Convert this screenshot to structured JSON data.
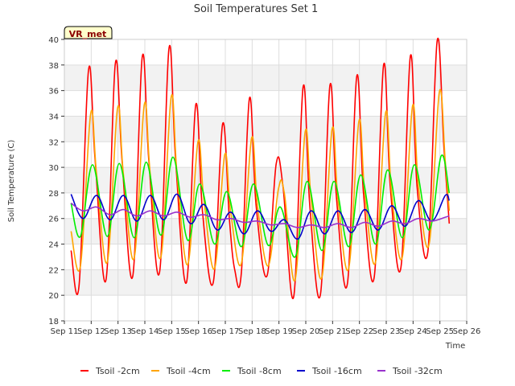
{
  "chart_data": {
    "type": "line",
    "title": "Soil Temperatures Set 1",
    "xlabel": "Time",
    "ylabel": "Soil Temperature (C)",
    "site_label": "VR_met",
    "ylim": [
      18,
      40
    ],
    "y_ticks": [
      18,
      20,
      22,
      24,
      26,
      28,
      30,
      32,
      34,
      36,
      38,
      40
    ],
    "xlim": [
      11,
      26
    ],
    "x_ticks": [
      11,
      12,
      13,
      14,
      15,
      16,
      17,
      18,
      19,
      20,
      21,
      22,
      23,
      24,
      25,
      26
    ],
    "x_tick_labels": [
      "Sep 11",
      "Sep 12",
      "Sep 13",
      "Sep 14",
      "Sep 15",
      "Sep 16",
      "Sep 17",
      "Sep 18",
      "Sep 19",
      "Sep 20",
      "Sep 21",
      "Sep 22",
      "Sep 23",
      "Sep 24",
      "Sep 25",
      "Sep 26"
    ],
    "background": "alternating-gray-bands",
    "legend_position": "bottom",
    "series": [
      {
        "name": "Tsoil -2cm",
        "color": "#ff0000",
        "x": [
          11.25,
          11.55,
          11.9,
          12.15,
          12.55,
          12.9,
          13.15,
          13.55,
          13.9,
          14.15,
          14.55,
          14.9,
          15.15,
          15.55,
          15.9,
          16.15,
          16.55,
          16.9,
          17.15,
          17.35,
          17.6,
          17.9,
          18.15,
          18.55,
          18.9,
          19.15,
          19.55,
          19.9,
          20.15,
          20.55,
          20.9,
          21.15,
          21.55,
          21.9,
          22.15,
          22.55,
          22.9,
          23.15,
          23.55,
          23.9,
          24.15,
          24.55,
          24.9,
          25.15,
          25.35
        ],
        "y": [
          23.5,
          20.8,
          37.6,
          30.5,
          21.2,
          38.1,
          30.5,
          21.5,
          38.6,
          30.5,
          21.8,
          39.3,
          30.5,
          21.0,
          34.9,
          26.5,
          21.0,
          33.4,
          26.0,
          22.0,
          21.8,
          35.4,
          27.0,
          21.5,
          30.3,
          28.5,
          19.9,
          36.3,
          27.0,
          20.1,
          36.4,
          27.5,
          20.9,
          37.1,
          28.0,
          21.4,
          38.0,
          28.5,
          22.2,
          38.7,
          28.5,
          23.4,
          39.9,
          31.5,
          25.6
        ]
      },
      {
        "name": "Tsoil -4cm",
        "color": "#ffa500",
        "x": [
          11.25,
          11.6,
          11.98,
          12.2,
          12.6,
          12.98,
          13.2,
          13.6,
          13.98,
          14.2,
          14.6,
          14.98,
          15.2,
          15.6,
          15.98,
          16.2,
          16.6,
          16.98,
          17.2,
          17.6,
          17.98,
          18.2,
          18.6,
          18.98,
          19.2,
          19.6,
          19.98,
          20.2,
          20.6,
          20.98,
          21.2,
          21.6,
          21.98,
          22.2,
          22.6,
          22.98,
          23.2,
          23.6,
          23.98,
          24.2,
          24.6,
          24.98,
          25.2,
          25.35
        ],
        "y": [
          25.0,
          22.3,
          34.2,
          29.5,
          22.6,
          34.6,
          29.5,
          22.9,
          34.9,
          29.5,
          23.0,
          35.5,
          29.5,
          22.4,
          32.0,
          27.5,
          22.1,
          31.0,
          26.5,
          22.5,
          32.3,
          27.0,
          22.3,
          28.3,
          28.0,
          21.2,
          32.8,
          27.5,
          21.4,
          33.0,
          27.5,
          22.1,
          33.6,
          28.0,
          22.6,
          34.3,
          28.0,
          23.0,
          34.8,
          28.5,
          24.0,
          35.9,
          30.5,
          26.6
        ]
      },
      {
        "name": "Tsoil -8cm",
        "color": "#00ee00",
        "x": [
          11.25,
          11.6,
          12.05,
          12.6,
          13.05,
          13.6,
          14.05,
          14.6,
          15.05,
          15.6,
          16.05,
          16.6,
          17.05,
          17.6,
          18.05,
          18.6,
          19.05,
          19.6,
          20.05,
          20.6,
          21.05,
          21.6,
          22.05,
          22.6,
          23.05,
          23.6,
          24.05,
          24.6,
          25.05,
          25.35
        ],
        "y": [
          27.2,
          24.6,
          30.2,
          24.6,
          30.3,
          24.5,
          30.4,
          24.7,
          30.8,
          24.3,
          28.7,
          24.0,
          28.1,
          23.8,
          28.7,
          23.9,
          26.9,
          23.0,
          28.9,
          23.5,
          28.9,
          23.8,
          29.4,
          24.0,
          29.8,
          24.5,
          30.2,
          25.1,
          30.9,
          28.0
        ]
      },
      {
        "name": "Tsoil -16cm",
        "color": "#0000cc",
        "x": [
          11.25,
          11.7,
          12.2,
          12.7,
          13.2,
          13.7,
          14.2,
          14.7,
          15.2,
          15.7,
          16.2,
          16.7,
          17.2,
          17.7,
          18.2,
          18.7,
          19.2,
          19.7,
          20.2,
          20.7,
          21.2,
          21.7,
          22.2,
          22.7,
          23.2,
          23.7,
          24.2,
          24.7,
          25.2,
          25.35
        ],
        "y": [
          27.9,
          26.0,
          27.8,
          25.9,
          27.8,
          25.8,
          27.8,
          25.9,
          27.9,
          25.6,
          27.1,
          25.1,
          26.5,
          24.8,
          26.6,
          25.0,
          25.9,
          24.4,
          26.6,
          24.8,
          26.6,
          24.9,
          26.7,
          25.1,
          27.0,
          25.4,
          27.4,
          25.8,
          27.8,
          27.4
        ]
      },
      {
        "name": "Tsoil -32cm",
        "color": "#9932cc",
        "x": [
          11.25,
          11.7,
          12.2,
          12.7,
          13.2,
          13.7,
          14.2,
          14.7,
          15.2,
          15.7,
          16.2,
          16.7,
          17.2,
          17.7,
          18.2,
          18.7,
          19.2,
          19.7,
          20.2,
          20.7,
          21.2,
          21.7,
          22.2,
          22.7,
          23.2,
          23.7,
          24.2,
          24.7,
          25.2,
          25.35
        ],
        "y": [
          27.2,
          26.6,
          26.9,
          26.3,
          26.7,
          26.2,
          26.6,
          26.2,
          26.5,
          26.1,
          26.3,
          25.9,
          26.0,
          25.7,
          25.8,
          25.5,
          25.6,
          25.3,
          25.5,
          25.3,
          25.6,
          25.3,
          25.7,
          25.4,
          25.8,
          25.6,
          26.0,
          25.8,
          26.1,
          26.2
        ]
      }
    ]
  }
}
